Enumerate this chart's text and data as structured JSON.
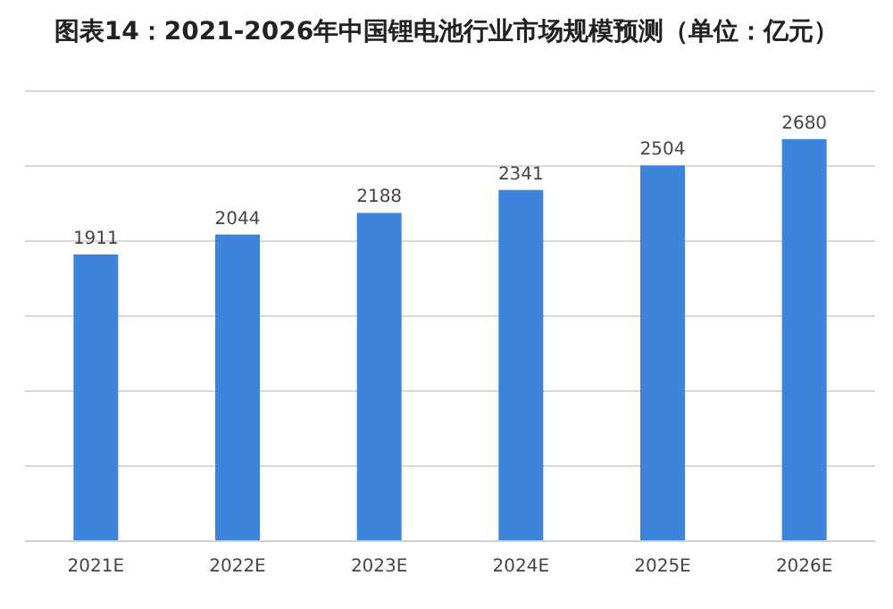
{
  "chart_data": {
    "type": "bar",
    "title": "图表14：2021-2026年中国锂电池行业市场规模预测（单位：亿元）",
    "categories": [
      "2021E",
      "2022E",
      "2023E",
      "2024E",
      "2025E",
      "2026E"
    ],
    "values": [
      1911,
      2044,
      2188,
      2341,
      2504,
      2680
    ],
    "color": "#3d85dc",
    "ylim": [
      0,
      3000
    ],
    "yticks": [
      {
        "value": 0,
        "label": null
      },
      {
        "value": 500,
        "label": null
      },
      {
        "value": 1000,
        "label": null
      },
      {
        "value": 1500,
        "label": null
      },
      {
        "value": 2000,
        "label": null
      },
      {
        "value": 2500,
        "label": null
      },
      {
        "value": 3000,
        "label": null
      }
    ],
    "tick_labels": "x",
    "grid": "y",
    "data_labels": true
  }
}
